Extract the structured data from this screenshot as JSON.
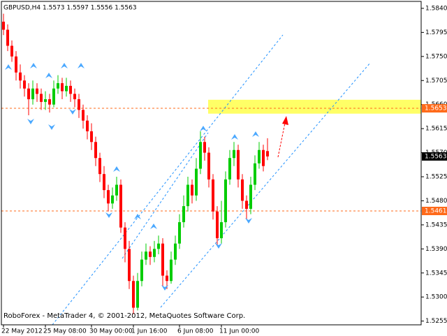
{
  "chart_data": {
    "type": "candlestick",
    "title": "GBPUSD,H4  1.5573 1.5597 1.5556 1.5563",
    "footer": "RoboForex - MetaTrader 4, © 2001-2012, MetaQuotes Software Corp.",
    "categories": [
      "22 May 2012",
      null,
      null,
      null,
      null,
      null,
      null,
      null,
      null,
      null,
      "25 May 08:00",
      null,
      null,
      null,
      null,
      null,
      null,
      null,
      null,
      null,
      null,
      "30 May 00:00",
      null,
      null,
      null,
      null,
      null,
      null,
      null,
      null,
      null,
      "1 Jun 16:00",
      null,
      null,
      null,
      null,
      null,
      null,
      null,
      null,
      null,
      null,
      "6 Jun 08:00",
      null,
      null,
      null,
      null,
      null,
      null,
      null,
      null,
      null,
      "11 Jun 00:00",
      null,
      null,
      null,
      null,
      null,
      null,
      null,
      null,
      null,
      null,
      null
    ],
    "open": [
      1.5815,
      1.58,
      1.577,
      1.575,
      1.572,
      1.5705,
      1.569,
      1.567,
      1.569,
      1.568,
      1.5665,
      1.567,
      1.566,
      1.569,
      1.57,
      1.5685,
      1.5695,
      1.568,
      1.567,
      1.565,
      1.563,
      1.561,
      1.559,
      1.556,
      1.553,
      1.55,
      1.5475,
      1.549,
      1.551,
      1.543,
      1.539,
      1.533,
      1.528,
      1.533,
      1.537,
      1.5385,
      1.5375,
      1.539,
      1.54,
      1.534,
      1.533,
      1.537,
      1.54,
      1.544,
      1.547,
      1.551,
      1.549,
      1.554,
      1.559,
      1.557,
      1.552,
      1.546,
      1.541,
      1.544,
      1.552,
      1.556,
      1.5575,
      1.552,
      1.548,
      1.5465,
      1.551,
      1.555,
      1.5575,
      1.5573
    ],
    "high": [
      1.583,
      1.581,
      1.578,
      1.576,
      1.5735,
      1.5715,
      1.57,
      1.5705,
      1.57,
      1.569,
      1.5685,
      1.568,
      1.5705,
      1.5715,
      1.571,
      1.571,
      1.5705,
      1.569,
      1.568,
      1.566,
      1.564,
      1.5625,
      1.56,
      1.557,
      1.5545,
      1.551,
      1.5505,
      1.5525,
      1.552,
      1.544,
      1.5405,
      1.534,
      1.5345,
      1.5385,
      1.54,
      1.5395,
      1.5405,
      1.5415,
      1.541,
      1.535,
      1.5385,
      1.5415,
      1.5455,
      1.549,
      1.5525,
      1.552,
      1.556,
      1.561,
      1.56,
      1.558,
      1.553,
      1.547,
      1.548,
      1.5535,
      1.5575,
      1.559,
      1.5585,
      1.553,
      1.549,
      1.5525,
      1.5565,
      1.559,
      1.5585,
      1.5597
    ],
    "low": [
      1.579,
      1.576,
      1.574,
      1.5705,
      1.569,
      1.5675,
      1.564,
      1.566,
      1.5665,
      1.565,
      1.565,
      1.5645,
      1.5655,
      1.568,
      1.567,
      1.5675,
      1.5665,
      1.5655,
      1.5635,
      1.5615,
      1.5595,
      1.5575,
      1.5545,
      1.5515,
      1.5485,
      1.546,
      1.5465,
      1.548,
      1.542,
      1.5365,
      1.5315,
      1.5268,
      1.5275,
      1.532,
      1.536,
      1.536,
      1.5365,
      1.538,
      1.532,
      1.5315,
      1.5325,
      1.536,
      1.539,
      1.543,
      1.546,
      1.5475,
      1.548,
      1.553,
      1.5555,
      1.5505,
      1.5445,
      1.5395,
      1.54,
      1.543,
      1.551,
      1.5545,
      1.5505,
      1.5465,
      1.5445,
      1.5455,
      1.55,
      1.554,
      1.5535,
      1.5556
    ],
    "close": [
      1.58,
      1.577,
      1.575,
      1.572,
      1.5705,
      1.569,
      1.567,
      1.569,
      1.568,
      1.5665,
      1.567,
      1.566,
      1.569,
      1.57,
      1.5685,
      1.5695,
      1.568,
      1.567,
      1.565,
      1.563,
      1.561,
      1.559,
      1.556,
      1.553,
      1.55,
      1.5475,
      1.549,
      1.551,
      1.543,
      1.539,
      1.533,
      1.528,
      1.533,
      1.537,
      1.5385,
      1.5375,
      1.539,
      1.54,
      1.534,
      1.533,
      1.537,
      1.54,
      1.544,
      1.547,
      1.551,
      1.549,
      1.554,
      1.559,
      1.557,
      1.552,
      1.546,
      1.541,
      1.544,
      1.552,
      1.556,
      1.5575,
      1.552,
      1.548,
      1.5465,
      1.551,
      1.555,
      1.5575,
      1.5545,
      1.5563
    ],
    "up_color": "#00cc00",
    "down_color": "#ff0000",
    "ylim": [
      1.5248,
      1.5853
    ],
    "yticks": [
      {
        "value": 1.584,
        "label": "1.5840"
      },
      1.5795,
      {
        "value": 1.575,
        "label": "1.5750"
      },
      1.5705,
      {
        "value": 1.566,
        "label": "1.5660"
      },
      1.5615,
      {
        "value": 1.557,
        "label": "1.5570"
      },
      1.5525,
      {
        "value": 1.548,
        "label": "1.5480"
      },
      1.5435,
      {
        "value": 1.539,
        "label": "1.5390"
      },
      1.5345,
      {
        "value": 1.53,
        "label": "1.5300"
      },
      1.5255
    ],
    "hlines": [
      {
        "value": 1.5653,
        "color": "#ff6a1a"
      },
      {
        "value": 1.5461,
        "color": "#ff6a1a"
      }
    ],
    "zone": {
      "range": [
        1.5643,
        1.5669
      ],
      "color": "#ffff66"
    }
  }
}
